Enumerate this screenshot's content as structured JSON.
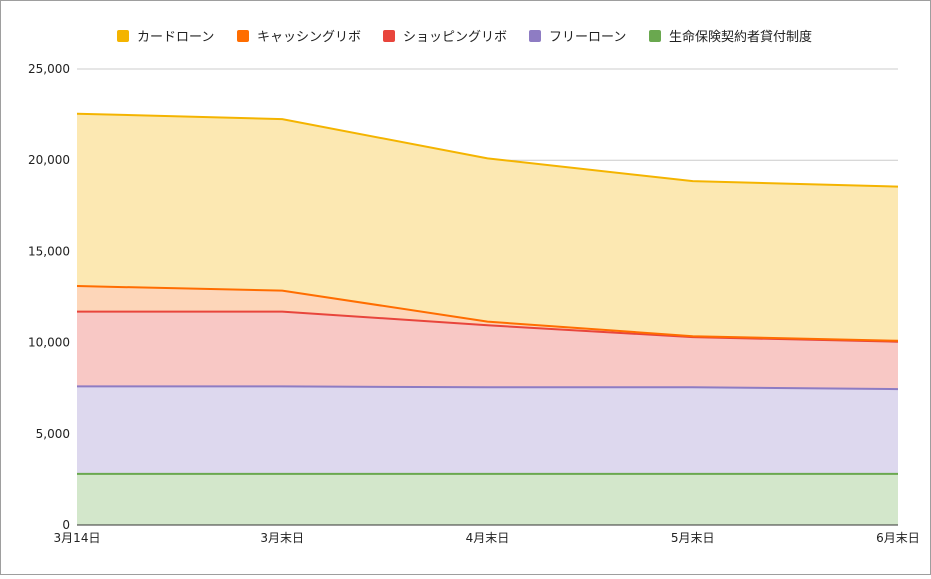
{
  "chart_data": {
    "type": "area",
    "stacked": true,
    "categories": [
      "3月14日",
      "3月末日",
      "4月末日",
      "5月末日",
      "6月末日"
    ],
    "series": [
      {
        "name": "カードローン",
        "color": "#f4b400",
        "fill": "#fce8b2",
        "values": [
          9450,
          9400,
          8950,
          8500,
          8450
        ]
      },
      {
        "name": "キャッシングリボ",
        "color": "#ff6d00",
        "fill": "#fdd6b9",
        "values": [
          1400,
          1150,
          200,
          50,
          50
        ]
      },
      {
        "name": "ショッピングリボ",
        "color": "#e8453c",
        "fill": "#f8c8c5",
        "values": [
          4100,
          4100,
          3400,
          2750,
          2600
        ]
      },
      {
        "name": "フリーローン",
        "color": "#8e7cc3",
        "fill": "#ddd8ee",
        "values": [
          4800,
          4800,
          4750,
          4750,
          4650
        ]
      },
      {
        "name": "生命保険契約者貸付制度",
        "color": "#6aa84f",
        "fill": "#d3e7cb",
        "values": [
          2800,
          2800,
          2800,
          2800,
          2800
        ]
      }
    ],
    "ylim": [
      0,
      25000
    ],
    "yticks": [
      "0",
      "5,000",
      "10,000",
      "15,000",
      "20,000",
      "25,000"
    ],
    "ytick_values": [
      0,
      5000,
      10000,
      15000,
      20000,
      25000
    ],
    "grid": true,
    "legend_position": "top"
  }
}
